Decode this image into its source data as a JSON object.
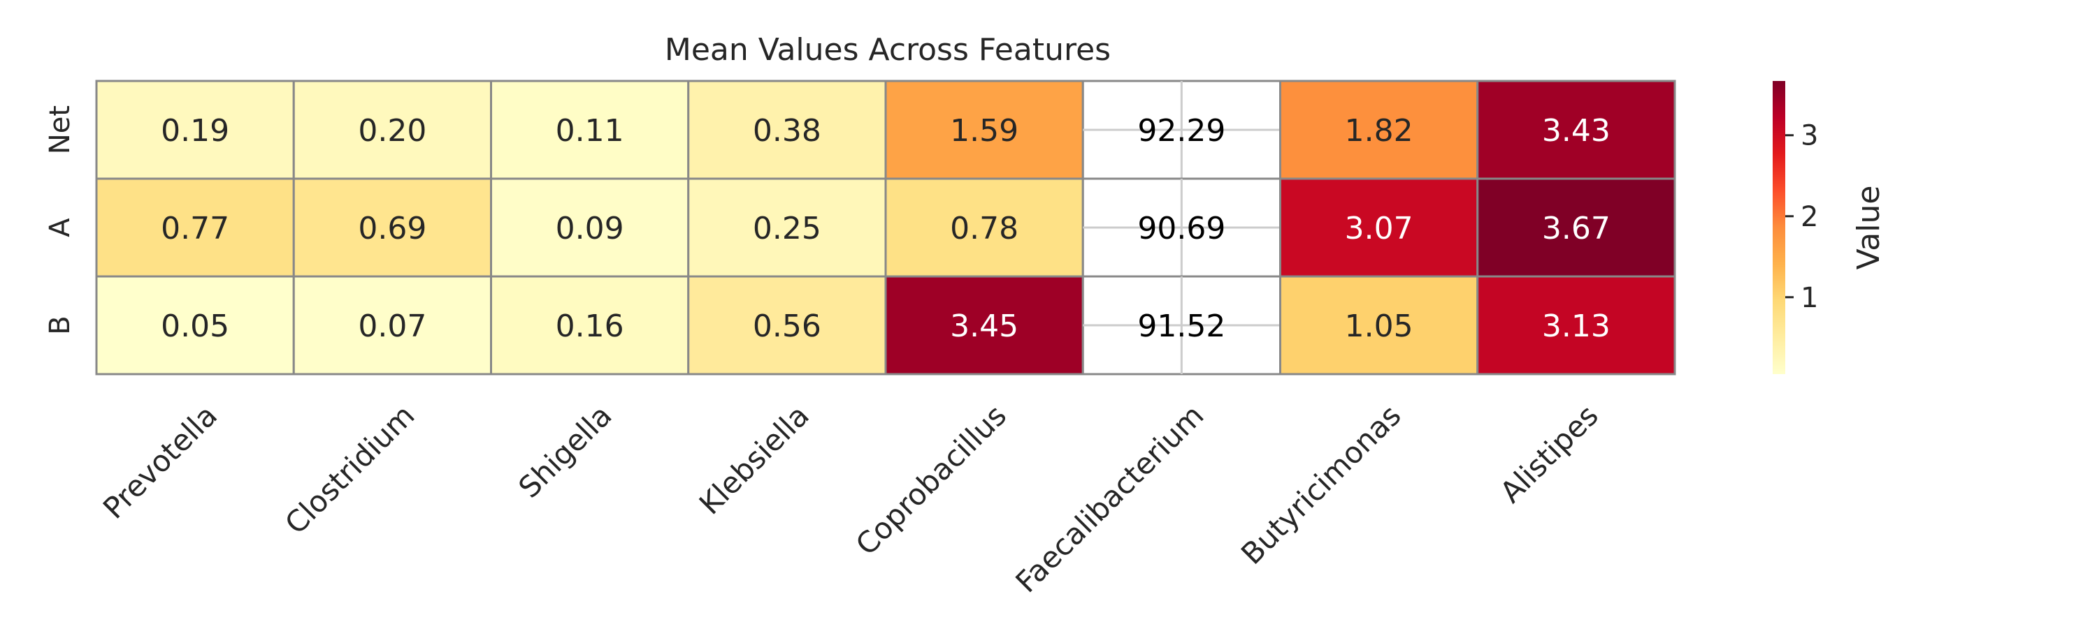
{
  "chart_data": {
    "type": "heatmap",
    "title": "Mean Values Across Features",
    "x_categories": [
      "Prevotella",
      "Clostridium",
      "Shigella",
      "Klebsiella",
      "Coprobacillus",
      "Faecalibacterium",
      "Butyricimonas",
      "Alistipes"
    ],
    "y_categories": [
      "Net",
      "A",
      "B"
    ],
    "values": [
      [
        0.19,
        0.2,
        0.11,
        0.38,
        1.59,
        92.29,
        1.82,
        3.43
      ],
      [
        0.77,
        0.69,
        0.09,
        0.25,
        0.78,
        90.69,
        3.07,
        3.67
      ],
      [
        0.05,
        0.07,
        0.16,
        0.56,
        3.45,
        91.52,
        1.05,
        3.13
      ]
    ],
    "masked_color_columns": [
      "Faecalibacterium"
    ],
    "colormap": "YlOrRd",
    "color_range": [
      0.05,
      3.67
    ],
    "colorbar": {
      "label": "Value",
      "ticks": [
        1,
        2,
        3
      ]
    },
    "grid": false,
    "colors": {
      "low": "#ffffcc",
      "mid": "#fd8d3c",
      "high": "#800026",
      "cell_border": "#888888",
      "masked_cell": "#ffffff"
    }
  }
}
